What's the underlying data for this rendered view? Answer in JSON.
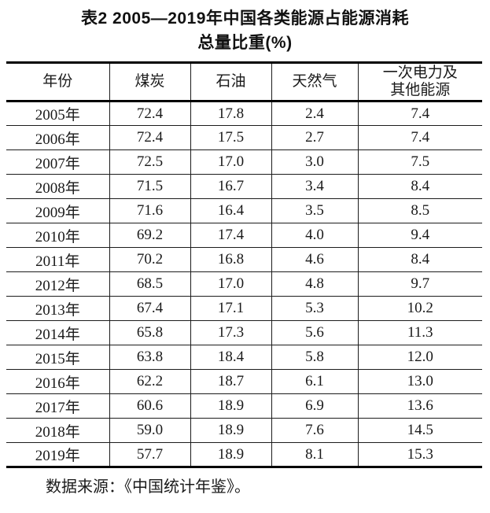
{
  "title": {
    "line1": "表2 2005—2019年中国各类能源占能源消耗",
    "line2": "总量比重(%)"
  },
  "table": {
    "headers": [
      {
        "label": "年份"
      },
      {
        "label": "煤炭"
      },
      {
        "label": "石油"
      },
      {
        "label": "天然气"
      },
      {
        "label": "一次电力及",
        "label2": "其他能源"
      }
    ],
    "rows": [
      {
        "year": "2005年",
        "coal": "72.4",
        "oil": "17.8",
        "gas": "2.4",
        "other": "7.4"
      },
      {
        "year": "2006年",
        "coal": "72.4",
        "oil": "17.5",
        "gas": "2.7",
        "other": "7.4"
      },
      {
        "year": "2007年",
        "coal": "72.5",
        "oil": "17.0",
        "gas": "3.0",
        "other": "7.5"
      },
      {
        "year": "2008年",
        "coal": "71.5",
        "oil": "16.7",
        "gas": "3.4",
        "other": "8.4"
      },
      {
        "year": "2009年",
        "coal": "71.6",
        "oil": "16.4",
        "gas": "3.5",
        "other": "8.5"
      },
      {
        "year": "2010年",
        "coal": "69.2",
        "oil": "17.4",
        "gas": "4.0",
        "other": "9.4"
      },
      {
        "year": "2011年",
        "coal": "70.2",
        "oil": "16.8",
        "gas": "4.6",
        "other": "8.4"
      },
      {
        "year": "2012年",
        "coal": "68.5",
        "oil": "17.0",
        "gas": "4.8",
        "other": "9.7"
      },
      {
        "year": "2013年",
        "coal": "67.4",
        "oil": "17.1",
        "gas": "5.3",
        "other": "10.2"
      },
      {
        "year": "2014年",
        "coal": "65.8",
        "oil": "17.3",
        "gas": "5.6",
        "other": "11.3"
      },
      {
        "year": "2015年",
        "coal": "63.8",
        "oil": "18.4",
        "gas": "5.8",
        "other": "12.0"
      },
      {
        "year": "2016年",
        "coal": "62.2",
        "oil": "18.7",
        "gas": "6.1",
        "other": "13.0"
      },
      {
        "year": "2017年",
        "coal": "60.6",
        "oil": "18.9",
        "gas": "6.9",
        "other": "13.6"
      },
      {
        "year": "2018年",
        "coal": "59.0",
        "oil": "18.9",
        "gas": "7.6",
        "other": "14.5"
      },
      {
        "year": "2019年",
        "coal": "57.7",
        "oil": "18.9",
        "gas": "8.1",
        "other": "15.3"
      }
    ]
  },
  "footer": {
    "source": "数据来源：《中国统计年鉴》。"
  },
  "chart_data": {
    "type": "table",
    "title": "表2 2005—2019年中国各类能源占能源消耗总量比重(%)",
    "columns": [
      "年份",
      "煤炭",
      "石油",
      "天然气",
      "一次电力及其他能源"
    ],
    "rows": [
      [
        "2005年",
        72.4,
        17.8,
        2.4,
        7.4
      ],
      [
        "2006年",
        72.4,
        17.5,
        2.7,
        7.4
      ],
      [
        "2007年",
        72.5,
        17.0,
        3.0,
        7.5
      ],
      [
        "2008年",
        71.5,
        16.7,
        3.4,
        8.4
      ],
      [
        "2009年",
        71.6,
        16.4,
        3.5,
        8.5
      ],
      [
        "2010年",
        69.2,
        17.4,
        4.0,
        9.4
      ],
      [
        "2011年",
        70.2,
        16.8,
        4.6,
        8.4
      ],
      [
        "2012年",
        68.5,
        17.0,
        4.8,
        9.7
      ],
      [
        "2013年",
        67.4,
        17.1,
        5.3,
        10.2
      ],
      [
        "2014年",
        65.8,
        17.3,
        5.6,
        11.3
      ],
      [
        "2015年",
        63.8,
        18.4,
        5.8,
        12.0
      ],
      [
        "2016年",
        62.2,
        18.7,
        6.1,
        13.0
      ],
      [
        "2017年",
        60.6,
        18.9,
        6.9,
        13.6
      ],
      [
        "2018年",
        59.0,
        18.9,
        7.6,
        14.5
      ],
      [
        "2019年",
        57.7,
        18.9,
        8.1,
        15.3
      ]
    ],
    "source_note": "数据来源：《中国统计年鉴》。"
  }
}
